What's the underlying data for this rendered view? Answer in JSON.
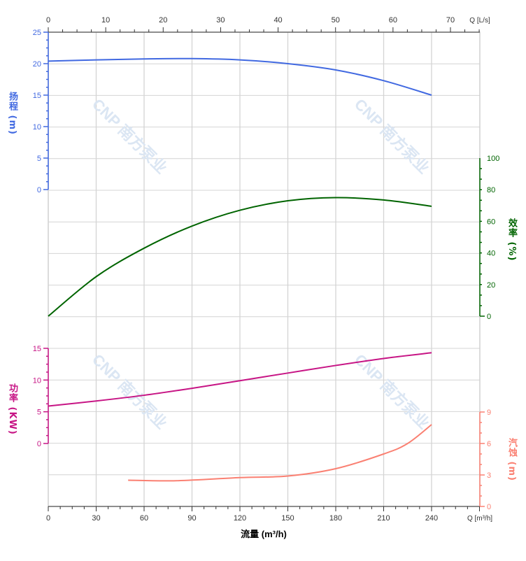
{
  "chart_data": {
    "type": "line",
    "x_bottom": {
      "label": "流量 (m³/h)",
      "unit_label": "Q [m³/h]",
      "range": [
        0,
        270
      ],
      "ticks": [
        0,
        30,
        60,
        90,
        120,
        150,
        180,
        210,
        240
      ]
    },
    "x_top": {
      "unit_label": "Q [L/s]",
      "range": [
        0,
        75
      ],
      "ticks": [
        0,
        10,
        20,
        30,
        40,
        50,
        60,
        70
      ]
    },
    "grid": true,
    "axes": {
      "head": {
        "label": "扬程 (m)",
        "side": "left",
        "ticks": [
          0,
          5,
          10,
          15,
          20,
          25
        ],
        "range": [
          0,
          25
        ],
        "color": "#4169e1"
      },
      "efficiency": {
        "label": "效率 (%)",
        "side": "right",
        "ticks": [
          0,
          20,
          40,
          60,
          80,
          100
        ],
        "range": [
          0,
          100
        ],
        "color": "#006400"
      },
      "power": {
        "label": "功率 (KW)",
        "side": "left",
        "ticks": [
          0,
          5,
          10,
          15
        ],
        "range": [
          0,
          15
        ],
        "color": "#c71585"
      },
      "npsh": {
        "label": "汽蚀 (m)",
        "side": "right",
        "ticks": [
          0,
          3,
          6,
          9
        ],
        "range": [
          0,
          9
        ],
        "color": "#fa8072"
      }
    },
    "series": [
      {
        "axis": "head",
        "x": [
          0,
          30,
          60,
          90,
          120,
          150,
          180,
          210,
          240
        ],
        "y": [
          20.4,
          20.6,
          20.75,
          20.8,
          20.6,
          20.0,
          19.0,
          17.3,
          15.0
        ]
      },
      {
        "axis": "efficiency",
        "x": [
          0,
          30,
          60,
          90,
          120,
          150,
          180,
          210,
          240
        ],
        "y": [
          0,
          25,
          43,
          57,
          67,
          73,
          75,
          73.5,
          69.5
        ]
      },
      {
        "axis": "power",
        "x": [
          0,
          30,
          60,
          90,
          120,
          150,
          180,
          210,
          240
        ],
        "y": [
          5.9,
          6.7,
          7.6,
          8.7,
          9.9,
          11.1,
          12.3,
          13.4,
          14.3
        ]
      },
      {
        "axis": "npsh",
        "x": [
          50,
          80,
          120,
          150,
          180,
          210,
          225,
          240
        ],
        "y": [
          2.5,
          2.45,
          2.75,
          2.9,
          3.6,
          5.0,
          6.0,
          7.8
        ]
      }
    ],
    "watermark": "CNP 南方泵业"
  }
}
